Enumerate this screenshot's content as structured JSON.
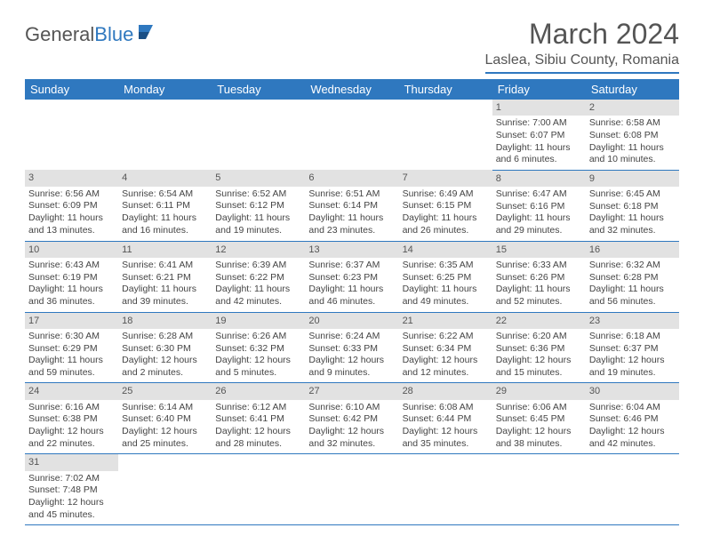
{
  "brand": {
    "part1": "General",
    "part2": "Blue"
  },
  "title": "March 2024",
  "location": "Laslea, Sibiu County, Romania",
  "colors": {
    "accent": "#2f78bf",
    "header_text": "#555555",
    "body_text": "#444444",
    "day_bg": "#e2e2e2"
  },
  "font": {
    "family": "Arial",
    "title_size": 32,
    "location_size": 16,
    "th_size": 13,
    "cell_size": 10.5
  },
  "weekdays": [
    "Sunday",
    "Monday",
    "Tuesday",
    "Wednesday",
    "Thursday",
    "Friday",
    "Saturday"
  ],
  "first_weekday_index": 5,
  "days": [
    {
      "n": 1,
      "sunrise": "7:00 AM",
      "sunset": "6:07 PM",
      "daylight": "11 hours and 6 minutes."
    },
    {
      "n": 2,
      "sunrise": "6:58 AM",
      "sunset": "6:08 PM",
      "daylight": "11 hours and 10 minutes."
    },
    {
      "n": 3,
      "sunrise": "6:56 AM",
      "sunset": "6:09 PM",
      "daylight": "11 hours and 13 minutes."
    },
    {
      "n": 4,
      "sunrise": "6:54 AM",
      "sunset": "6:11 PM",
      "daylight": "11 hours and 16 minutes."
    },
    {
      "n": 5,
      "sunrise": "6:52 AM",
      "sunset": "6:12 PM",
      "daylight": "11 hours and 19 minutes."
    },
    {
      "n": 6,
      "sunrise": "6:51 AM",
      "sunset": "6:14 PM",
      "daylight": "11 hours and 23 minutes."
    },
    {
      "n": 7,
      "sunrise": "6:49 AM",
      "sunset": "6:15 PM",
      "daylight": "11 hours and 26 minutes."
    },
    {
      "n": 8,
      "sunrise": "6:47 AM",
      "sunset": "6:16 PM",
      "daylight": "11 hours and 29 minutes."
    },
    {
      "n": 9,
      "sunrise": "6:45 AM",
      "sunset": "6:18 PM",
      "daylight": "11 hours and 32 minutes."
    },
    {
      "n": 10,
      "sunrise": "6:43 AM",
      "sunset": "6:19 PM",
      "daylight": "11 hours and 36 minutes."
    },
    {
      "n": 11,
      "sunrise": "6:41 AM",
      "sunset": "6:21 PM",
      "daylight": "11 hours and 39 minutes."
    },
    {
      "n": 12,
      "sunrise": "6:39 AM",
      "sunset": "6:22 PM",
      "daylight": "11 hours and 42 minutes."
    },
    {
      "n": 13,
      "sunrise": "6:37 AM",
      "sunset": "6:23 PM",
      "daylight": "11 hours and 46 minutes."
    },
    {
      "n": 14,
      "sunrise": "6:35 AM",
      "sunset": "6:25 PM",
      "daylight": "11 hours and 49 minutes."
    },
    {
      "n": 15,
      "sunrise": "6:33 AM",
      "sunset": "6:26 PM",
      "daylight": "11 hours and 52 minutes."
    },
    {
      "n": 16,
      "sunrise": "6:32 AM",
      "sunset": "6:28 PM",
      "daylight": "11 hours and 56 minutes."
    },
    {
      "n": 17,
      "sunrise": "6:30 AM",
      "sunset": "6:29 PM",
      "daylight": "11 hours and 59 minutes."
    },
    {
      "n": 18,
      "sunrise": "6:28 AM",
      "sunset": "6:30 PM",
      "daylight": "12 hours and 2 minutes."
    },
    {
      "n": 19,
      "sunrise": "6:26 AM",
      "sunset": "6:32 PM",
      "daylight": "12 hours and 5 minutes."
    },
    {
      "n": 20,
      "sunrise": "6:24 AM",
      "sunset": "6:33 PM",
      "daylight": "12 hours and 9 minutes."
    },
    {
      "n": 21,
      "sunrise": "6:22 AM",
      "sunset": "6:34 PM",
      "daylight": "12 hours and 12 minutes."
    },
    {
      "n": 22,
      "sunrise": "6:20 AM",
      "sunset": "6:36 PM",
      "daylight": "12 hours and 15 minutes."
    },
    {
      "n": 23,
      "sunrise": "6:18 AM",
      "sunset": "6:37 PM",
      "daylight": "12 hours and 19 minutes."
    },
    {
      "n": 24,
      "sunrise": "6:16 AM",
      "sunset": "6:38 PM",
      "daylight": "12 hours and 22 minutes."
    },
    {
      "n": 25,
      "sunrise": "6:14 AM",
      "sunset": "6:40 PM",
      "daylight": "12 hours and 25 minutes."
    },
    {
      "n": 26,
      "sunrise": "6:12 AM",
      "sunset": "6:41 PM",
      "daylight": "12 hours and 28 minutes."
    },
    {
      "n": 27,
      "sunrise": "6:10 AM",
      "sunset": "6:42 PM",
      "daylight": "12 hours and 32 minutes."
    },
    {
      "n": 28,
      "sunrise": "6:08 AM",
      "sunset": "6:44 PM",
      "daylight": "12 hours and 35 minutes."
    },
    {
      "n": 29,
      "sunrise": "6:06 AM",
      "sunset": "6:45 PM",
      "daylight": "12 hours and 38 minutes."
    },
    {
      "n": 30,
      "sunrise": "6:04 AM",
      "sunset": "6:46 PM",
      "daylight": "12 hours and 42 minutes."
    },
    {
      "n": 31,
      "sunrise": "7:02 AM",
      "sunset": "7:48 PM",
      "daylight": "12 hours and 45 minutes."
    }
  ],
  "labels": {
    "sunrise": "Sunrise:",
    "sunset": "Sunset:",
    "daylight": "Daylight:"
  }
}
